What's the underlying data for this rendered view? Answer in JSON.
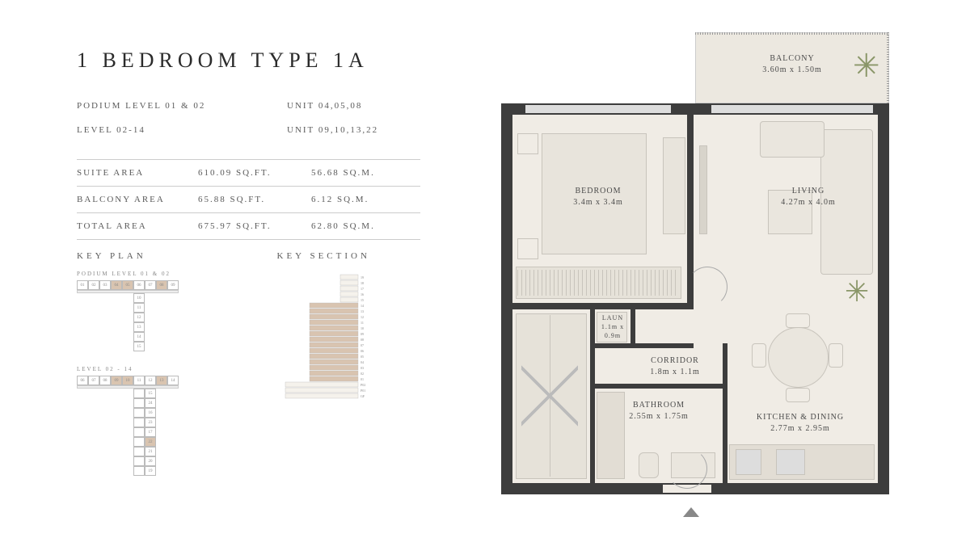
{
  "title": "1 BEDROOM TYPE 1A",
  "levels": [
    {
      "level": "PODIUM LEVEL 01 & 02",
      "units": "UNIT 04,05,08"
    },
    {
      "level": "LEVEL 02-14",
      "units": "UNIT 09,10,13,22"
    }
  ],
  "areas": [
    {
      "label": "SUITE AREA",
      "sqft": "610.09 SQ.FT.",
      "sqm": "56.68 SQ.M."
    },
    {
      "label": "BALCONY AREA",
      "sqft": "65.88 SQ.FT.",
      "sqm": "6.12 SQ.M."
    },
    {
      "label": "TOTAL AREA",
      "sqft": "675.97 SQ.FT.",
      "sqm": "62.80 SQ.M."
    }
  ],
  "key_plan_title": "KEY PLAN",
  "key_section_title": "KEY SECTION",
  "keyplan1": {
    "label": "PODIUM LEVEL 01 & 02",
    "top_row": [
      "01",
      "02",
      "03",
      "04",
      "05",
      "06",
      "07",
      "08",
      "09"
    ],
    "top_hl": [
      3,
      4,
      7
    ],
    "side": [
      "10",
      "11",
      "12",
      "13",
      "14",
      "15"
    ]
  },
  "keyplan2": {
    "label": "LEVEL 02 - 14",
    "top_row": [
      "06",
      "07",
      "08",
      "09",
      "10",
      "11",
      "12",
      "13",
      "14"
    ],
    "top_hl": [
      3,
      4,
      7
    ],
    "side": [
      "15",
      "24",
      "16",
      "23",
      "17",
      "22",
      "21",
      "20",
      "19"
    ],
    "side_hl": [
      5
    ]
  },
  "section": {
    "floors": [
      "19",
      "18",
      "17",
      "16",
      "15",
      "14",
      "13",
      "12",
      "11",
      "10",
      "09",
      "08",
      "07",
      "06",
      "05",
      "04",
      "03",
      "02",
      "01",
      "P02",
      "P01",
      "GF"
    ],
    "hl_color": "#d9c4b0",
    "line_color": "#bbb"
  },
  "rooms": {
    "balcony": {
      "name": "BALCONY",
      "dim": "3.60m x 1.50m"
    },
    "bedroom": {
      "name": "BEDROOM",
      "dim": "3.4m x 3.4m"
    },
    "living": {
      "name": "LIVING",
      "dim": "4.27m x 4.0m"
    },
    "corridor": {
      "name": "CORRIDOR",
      "dim": "1.8m x 1.1m"
    },
    "laun": {
      "name": "LAUN",
      "dim": "1.1m x 0.9m"
    },
    "bathroom": {
      "name": "BATHROOM",
      "dim": "2.55m x 1.75m"
    },
    "kitchen": {
      "name": "KITCHEN & DINING",
      "dim": "2.77m x 2.95m"
    }
  },
  "colors": {
    "wall": "#3d3d3d",
    "floor": "#f0ece5",
    "furniture_line": "#c8c4bc",
    "highlight": "#d9c4b0",
    "text": "#5a5a5a",
    "balcony_floor": "#ece8e0"
  }
}
